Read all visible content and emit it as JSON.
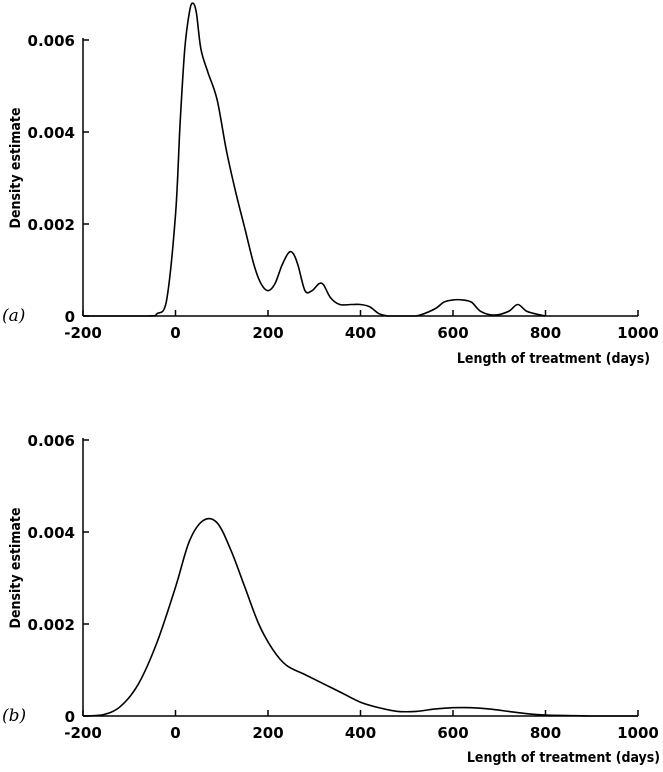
{
  "chart_data": [
    {
      "type": "line",
      "panel_label": "(a)",
      "xlabel": "Length of treatment (days)",
      "ylabel": "Density estimate",
      "xlim": [
        -200,
        1000
      ],
      "ylim": [
        0,
        0.006
      ],
      "xticks": [
        -200,
        0,
        200,
        400,
        600,
        800,
        1000
      ],
      "xtick_labels": [
        "-200",
        "0",
        "200",
        "400",
        "600",
        "800",
        "1000"
      ],
      "yticks": [
        0,
        0.002,
        0.004,
        0.006
      ],
      "ytick_labels": [
        "0",
        "0.002",
        "0.004",
        "0.006"
      ],
      "grid": false,
      "series": [
        {
          "x": [
            -200,
            -60,
            -40,
            -20,
            0,
            10,
            20,
            30,
            37,
            45,
            55,
            70,
            90,
            110,
            130,
            150,
            170,
            185,
            200,
            215,
            230,
            245,
            255,
            265,
            280,
            295,
            310,
            320,
            335,
            355,
            380,
            400,
            420,
            440,
            460,
            480,
            520,
            560,
            580,
            600,
            620,
            640,
            660,
            690,
            720,
            740,
            760,
            790,
            800
          ],
          "y": [
            0,
            0,
            5e-05,
            0.0003,
            0.0022,
            0.0042,
            0.0058,
            0.0066,
            0.0068,
            0.0066,
            0.0058,
            0.0053,
            0.0047,
            0.0036,
            0.0027,
            0.0019,
            0.0011,
            0.0007,
            0.00055,
            0.0007,
            0.0011,
            0.00138,
            0.00135,
            0.0011,
            0.00055,
            0.00055,
            0.0007,
            0.00068,
            0.0004,
            0.00025,
            0.00025,
            0.00025,
            0.0002,
            5e-05,
            0,
            0,
            0,
            0.00015,
            0.0003,
            0.00035,
            0.00035,
            0.0003,
            0.0001,
            2e-05,
            0.0001,
            0.00025,
            0.0001,
            2e-05,
            0
          ]
        }
      ]
    },
    {
      "type": "line",
      "panel_label": "(b)",
      "xlabel": "Length of treatment (days)",
      "ylabel": "Density estimate",
      "xlim": [
        -200,
        1000
      ],
      "ylim": [
        0,
        0.006
      ],
      "xticks": [
        -200,
        0,
        200,
        400,
        600,
        800,
        1000
      ],
      "xtick_labels": [
        "-200",
        "0",
        "200",
        "400",
        "600",
        "800",
        "1000"
      ],
      "yticks": [
        0,
        0.002,
        0.004,
        0.006
      ],
      "ytick_labels": [
        "0",
        "0.002",
        "0.004",
        "0.006"
      ],
      "grid": false,
      "series": [
        {
          "x": [
            -200,
            -160,
            -120,
            -80,
            -40,
            0,
            30,
            60,
            90,
            120,
            150,
            180,
            210,
            240,
            280,
            320,
            360,
            400,
            440,
            480,
            520,
            560,
            600,
            640,
            680,
            720,
            760,
            800,
            850,
            900,
            950,
            1000
          ],
          "y": [
            0,
            2e-05,
            0.0002,
            0.0007,
            0.0016,
            0.0028,
            0.0038,
            0.00425,
            0.0042,
            0.0036,
            0.0028,
            0.002,
            0.00145,
            0.0011,
            0.0009,
            0.0007,
            0.0005,
            0.0003,
            0.00018,
            0.0001,
            0.0001,
            0.00015,
            0.00018,
            0.00018,
            0.00015,
            0.0001,
            5e-05,
            2e-05,
            1e-05,
            0,
            0,
            0
          ]
        }
      ]
    }
  ]
}
